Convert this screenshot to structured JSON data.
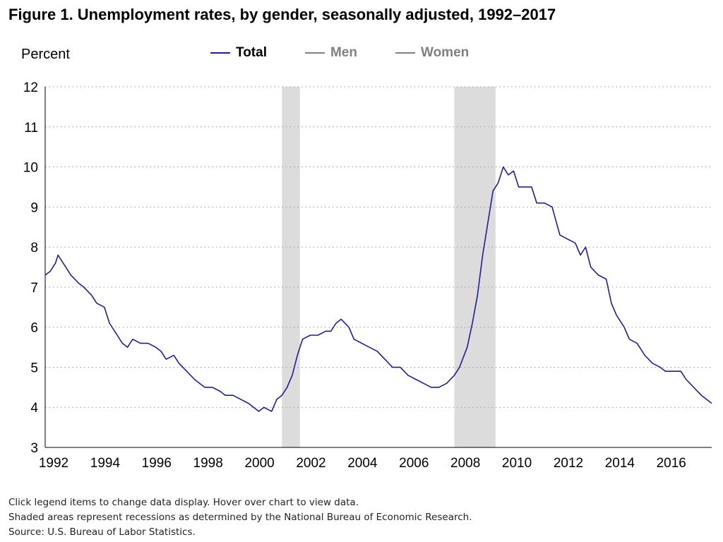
{
  "title": "Figure 1. Unemployment rates, by gender, seasonally adjusted, 1992–2017",
  "legend": [
    {
      "label": "Total",
      "color": "#1f1f8f",
      "active": true
    },
    {
      "label": "Men",
      "color": "#808080",
      "active": false
    },
    {
      "label": "Women",
      "color": "#808080",
      "active": false
    }
  ],
  "notes": {
    "line1": "Click legend items to change data display. Hover over chart to view data.",
    "line2": "Shaded areas represent recessions as determined by the National Bureau of Economic Research.",
    "line3": "Source: U.S. Bureau of Labor Statistics."
  },
  "chart_data": {
    "type": "line",
    "ylabel": "Percent",
    "xlim": [
      1992.0,
      2017.9
    ],
    "ylim": [
      3,
      12
    ],
    "xticks": [
      1992,
      1994,
      1996,
      1998,
      2000,
      2002,
      2004,
      2006,
      2008,
      2010,
      2012,
      2014,
      2016
    ],
    "yticks": [
      3,
      4,
      5,
      6,
      7,
      8,
      9,
      10,
      11,
      12
    ],
    "grid": "horizontal-dotted",
    "legend_position": "top",
    "recessions": [
      [
        2001.2,
        2001.9
      ],
      [
        2007.9,
        2009.5
      ]
    ],
    "series": [
      {
        "name": "Total",
        "color": "#1f1f8f",
        "points": [
          [
            1992.0,
            7.3
          ],
          [
            1992.2,
            7.4
          ],
          [
            1992.4,
            7.6
          ],
          [
            1992.5,
            7.8
          ],
          [
            1992.7,
            7.6
          ],
          [
            1992.9,
            7.4
          ],
          [
            1993.0,
            7.3
          ],
          [
            1993.3,
            7.1
          ],
          [
            1993.5,
            7.0
          ],
          [
            1993.8,
            6.8
          ],
          [
            1994.0,
            6.6
          ],
          [
            1994.3,
            6.5
          ],
          [
            1994.5,
            6.1
          ],
          [
            1994.8,
            5.8
          ],
          [
            1995.0,
            5.6
          ],
          [
            1995.2,
            5.5
          ],
          [
            1995.4,
            5.7
          ],
          [
            1995.7,
            5.6
          ],
          [
            1996.0,
            5.6
          ],
          [
            1996.3,
            5.5
          ],
          [
            1996.5,
            5.4
          ],
          [
            1996.7,
            5.2
          ],
          [
            1997.0,
            5.3
          ],
          [
            1997.2,
            5.1
          ],
          [
            1997.5,
            4.9
          ],
          [
            1997.8,
            4.7
          ],
          [
            1998.0,
            4.6
          ],
          [
            1998.2,
            4.5
          ],
          [
            1998.5,
            4.5
          ],
          [
            1998.8,
            4.4
          ],
          [
            1999.0,
            4.3
          ],
          [
            1999.3,
            4.3
          ],
          [
            1999.6,
            4.2
          ],
          [
            1999.9,
            4.1
          ],
          [
            2000.1,
            4.0
          ],
          [
            2000.3,
            3.9
          ],
          [
            2000.5,
            4.0
          ],
          [
            2000.8,
            3.9
          ],
          [
            2001.0,
            4.2
          ],
          [
            2001.2,
            4.3
          ],
          [
            2001.4,
            4.5
          ],
          [
            2001.6,
            4.8
          ],
          [
            2001.8,
            5.3
          ],
          [
            2002.0,
            5.7
          ],
          [
            2002.3,
            5.8
          ],
          [
            2002.6,
            5.8
          ],
          [
            2002.9,
            5.9
          ],
          [
            2003.1,
            5.9
          ],
          [
            2003.3,
            6.1
          ],
          [
            2003.5,
            6.2
          ],
          [
            2003.8,
            6.0
          ],
          [
            2004.0,
            5.7
          ],
          [
            2004.3,
            5.6
          ],
          [
            2004.6,
            5.5
          ],
          [
            2004.9,
            5.4
          ],
          [
            2005.2,
            5.2
          ],
          [
            2005.5,
            5.0
          ],
          [
            2005.8,
            5.0
          ],
          [
            2006.1,
            4.8
          ],
          [
            2006.4,
            4.7
          ],
          [
            2006.7,
            4.6
          ],
          [
            2007.0,
            4.5
          ],
          [
            2007.3,
            4.5
          ],
          [
            2007.6,
            4.6
          ],
          [
            2007.9,
            4.8
          ],
          [
            2008.1,
            5.0
          ],
          [
            2008.4,
            5.5
          ],
          [
            2008.6,
            6.1
          ],
          [
            2008.8,
            6.8
          ],
          [
            2009.0,
            7.8
          ],
          [
            2009.2,
            8.6
          ],
          [
            2009.4,
            9.4
          ],
          [
            2009.6,
            9.6
          ],
          [
            2009.8,
            10.0
          ],
          [
            2010.0,
            9.8
          ],
          [
            2010.2,
            9.9
          ],
          [
            2010.4,
            9.5
          ],
          [
            2010.6,
            9.5
          ],
          [
            2010.9,
            9.5
          ],
          [
            2011.1,
            9.1
          ],
          [
            2011.4,
            9.1
          ],
          [
            2011.7,
            9.0
          ],
          [
            2012.0,
            8.3
          ],
          [
            2012.3,
            8.2
          ],
          [
            2012.6,
            8.1
          ],
          [
            2012.8,
            7.8
          ],
          [
            2013.0,
            8.0
          ],
          [
            2013.2,
            7.5
          ],
          [
            2013.5,
            7.3
          ],
          [
            2013.8,
            7.2
          ],
          [
            2014.0,
            6.6
          ],
          [
            2014.2,
            6.3
          ],
          [
            2014.5,
            6.0
          ],
          [
            2014.7,
            5.7
          ],
          [
            2015.0,
            5.6
          ],
          [
            2015.3,
            5.3
          ],
          [
            2015.6,
            5.1
          ],
          [
            2015.9,
            5.0
          ],
          [
            2016.1,
            4.9
          ],
          [
            2016.4,
            4.9
          ],
          [
            2016.7,
            4.9
          ],
          [
            2016.9,
            4.7
          ],
          [
            2017.2,
            4.5
          ],
          [
            2017.5,
            4.3
          ],
          [
            2017.7,
            4.2
          ],
          [
            2017.9,
            4.1
          ]
        ]
      }
    ]
  }
}
